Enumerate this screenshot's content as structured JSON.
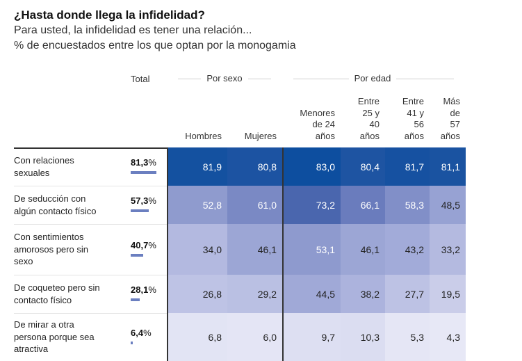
{
  "header": {
    "title": "¿Hasta donde llega la infidelidad?",
    "subtitle1": "Para usted, la infidelidad es tener una relación...",
    "subtitle2": "% de encuestados entre los que optan por la monogamia"
  },
  "chart_data": {
    "type": "heatmap",
    "title": "¿Hasta donde llega la infidelidad?",
    "subtitle": "Para usted, la infidelidad es tener una relación... — % de encuestados entre los que optan por la monogamia",
    "total_label": "Total",
    "groups": [
      {
        "label": "Por sexo",
        "columns": [
          "Hombres",
          "Mujeres"
        ]
      },
      {
        "label": "Por edad",
        "columns": [
          "Menores de 24 años",
          "Entre 25 y 40 años",
          "Entre 41 y 56 años",
          "Más de 57 años"
        ]
      }
    ],
    "column_headers": [
      [
        "Hombres"
      ],
      [
        "Mujeres"
      ],
      [
        "Menores",
        "de 24",
        "años"
      ],
      [
        "Entre",
        "25 y",
        "40",
        "años"
      ],
      [
        "Entre",
        "41 y",
        "56",
        "años"
      ],
      [
        "Más",
        "de",
        "57",
        "años"
      ]
    ],
    "rows": [
      {
        "label": [
          "Con relaciones",
          "sexuales"
        ],
        "total": 81.3,
        "total_text": "81,3",
        "values": [
          81.9,
          80.8,
          83.0,
          80.4,
          81.7,
          81.1
        ],
        "value_text": [
          "81,9",
          "80,8",
          "83,0",
          "80,4",
          "81,7",
          "81,1"
        ]
      },
      {
        "label": [
          "De seducción con",
          "algún contacto físico"
        ],
        "total": 57.3,
        "total_text": "57,3",
        "values": [
          52.8,
          61.0,
          73.2,
          66.1,
          58.3,
          48.5
        ],
        "value_text": [
          "52,8",
          "61,0",
          "73,2",
          "66,1",
          "58,3",
          "48,5"
        ]
      },
      {
        "label": [
          "Con sentimientos",
          "amorosos pero sin",
          "sexo"
        ],
        "total": 40.7,
        "total_text": "40,7",
        "values": [
          34.0,
          46.1,
          53.1,
          46.1,
          43.2,
          33.2
        ],
        "value_text": [
          "34,0",
          "46,1",
          "53,1",
          "46,1",
          "43,2",
          "33,2"
        ]
      },
      {
        "label": [
          "De coqueteo pero sin",
          "contacto físico"
        ],
        "total": 28.1,
        "total_text": "28,1",
        "values": [
          26.8,
          29.2,
          44.5,
          38.2,
          27.7,
          19.5
        ],
        "value_text": [
          "26,8",
          "29,2",
          "44,5",
          "38,2",
          "27,7",
          "19,5"
        ]
      },
      {
        "label": [
          "De mirar a otra",
          "persona porque sea",
          "atractiva"
        ],
        "total": 6.4,
        "total_text": "6,4",
        "values": [
          6.8,
          6.0,
          9.7,
          10.3,
          5.3,
          4.3
        ],
        "value_text": [
          "6,8",
          "6,0",
          "9,7",
          "10,3",
          "5,3",
          "4,3"
        ]
      }
    ],
    "percent_sign": "%",
    "colors": {
      "high": "#004a9c",
      "low": "#eff0fa",
      "bar": "#6b7fc0",
      "text_dark": "#222222",
      "text_light": "#ffffff"
    }
  }
}
